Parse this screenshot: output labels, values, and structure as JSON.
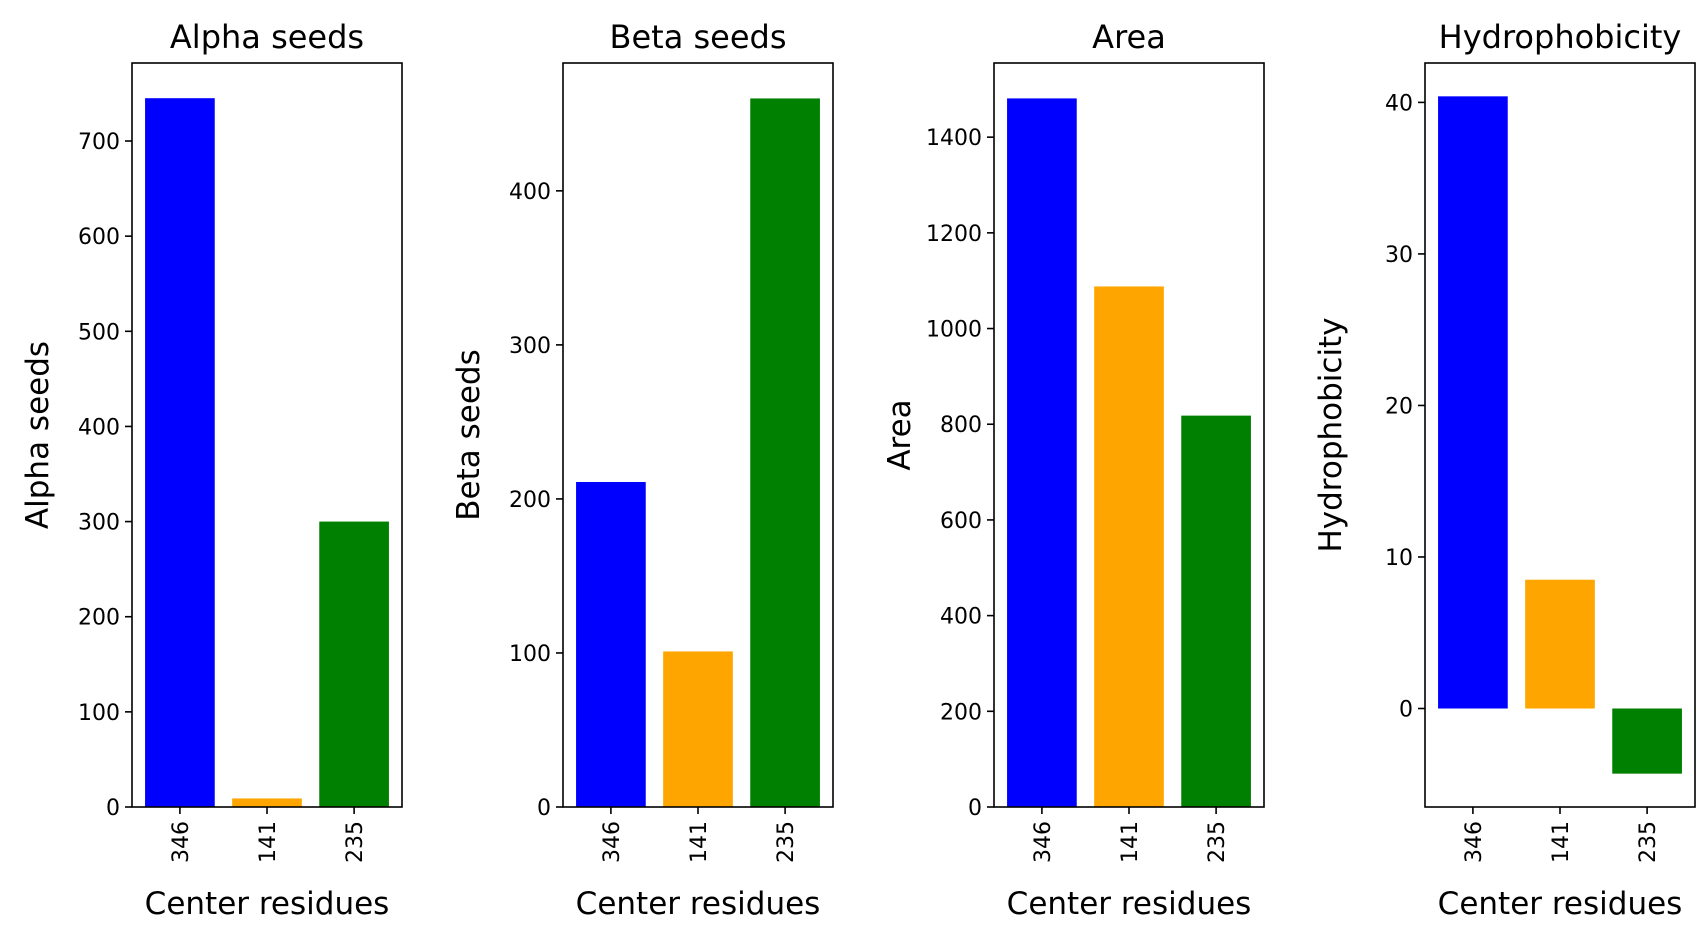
{
  "chart_data": [
    {
      "type": "bar",
      "title": "Alpha seeds",
      "xlabel": "Center residues",
      "ylabel": "Alpha seeds",
      "categories": [
        "346",
        "141",
        "235"
      ],
      "values": [
        745,
        9,
        300
      ],
      "colors": [
        "#0000ff",
        "#ffa500",
        "#008000"
      ],
      "ylim": [
        0,
        782
      ],
      "yticks": [
        0,
        100,
        200,
        300,
        400,
        500,
        600,
        700
      ],
      "grid": false
    },
    {
      "type": "bar",
      "title": "Beta seeds",
      "xlabel": "Center residues",
      "ylabel": "Beta seeds",
      "categories": [
        "346",
        "141",
        "235"
      ],
      "values": [
        211,
        101,
        460
      ],
      "colors": [
        "#0000ff",
        "#ffa500",
        "#008000"
      ],
      "ylim": [
        0,
        483
      ],
      "yticks": [
        0,
        100,
        200,
        300,
        400
      ],
      "grid": false
    },
    {
      "type": "bar",
      "title": "Area",
      "xlabel": "Center residues",
      "ylabel": "Area",
      "categories": [
        "346",
        "141",
        "235"
      ],
      "values": [
        1481,
        1088,
        818
      ],
      "colors": [
        "#0000ff",
        "#ffa500",
        "#008000"
      ],
      "ylim": [
        0,
        1555
      ],
      "yticks": [
        0,
        200,
        400,
        600,
        800,
        1000,
        1200,
        1400
      ],
      "grid": false
    },
    {
      "type": "bar",
      "title": "Hydrophobicity",
      "xlabel": "Center residues",
      "ylabel": "Hydrophobicity",
      "categories": [
        "346",
        "141",
        "235"
      ],
      "values": [
        40.4,
        8.5,
        -4.3
      ],
      "colors": [
        "#0000ff",
        "#ffa500",
        "#008000"
      ],
      "ylim": [
        -6.5,
        42.6
      ],
      "yticks": [
        0,
        10,
        20,
        30,
        40
      ],
      "grid": false
    }
  ]
}
